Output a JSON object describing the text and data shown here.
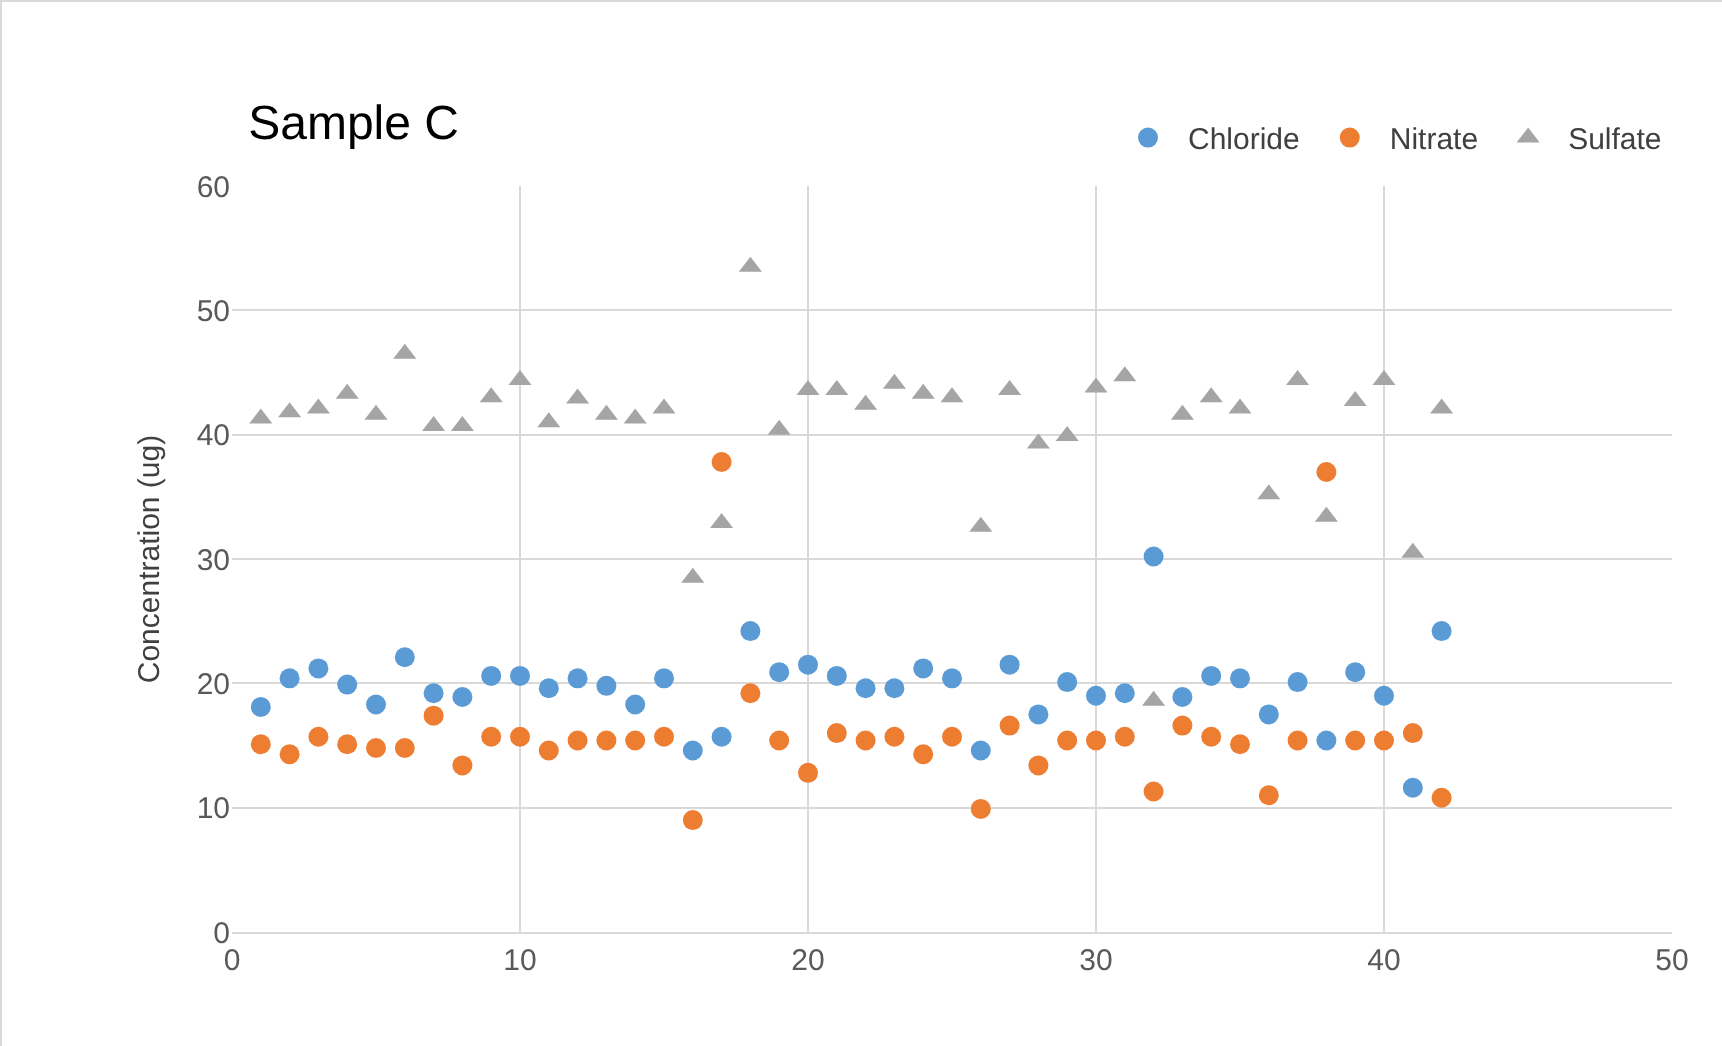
{
  "chart_data": {
    "type": "scatter",
    "title": "Sample C",
    "ylabel": "Concentration (ug)",
    "x": [
      1,
      2,
      3,
      4,
      5,
      6,
      7,
      8,
      9,
      10,
      11,
      12,
      13,
      14,
      15,
      16,
      17,
      18,
      19,
      20,
      21,
      22,
      23,
      24,
      25,
      26,
      27,
      28,
      29,
      30,
      31,
      32,
      33,
      34,
      35,
      36,
      37,
      38,
      39,
      40,
      41,
      42
    ],
    "series": [
      {
        "name": "Chloride",
        "color": "#5b9bd5",
        "marker": "circle",
        "values": [
          18.1,
          20.4,
          21.2,
          19.9,
          18.3,
          22.1,
          19.2,
          18.9,
          20.6,
          20.6,
          19.6,
          20.4,
          19.8,
          18.3,
          20.4,
          14.6,
          15.7,
          24.2,
          20.9,
          21.5,
          20.6,
          19.6,
          19.6,
          21.2,
          20.4,
          14.6,
          21.5,
          17.5,
          20.1,
          19.0,
          19.2,
          30.2,
          18.9,
          20.6,
          20.4,
          17.5,
          20.1,
          15.4,
          20.9,
          19.0,
          11.6,
          24.2
        ]
      },
      {
        "name": "Nitrate",
        "color": "#ed7d31",
        "marker": "circle",
        "values": [
          15.1,
          14.3,
          15.7,
          15.1,
          14.8,
          14.8,
          17.4,
          13.4,
          15.7,
          15.7,
          14.6,
          15.4,
          15.4,
          15.4,
          15.7,
          9.0,
          37.8,
          19.2,
          15.4,
          12.8,
          16.0,
          15.4,
          15.7,
          14.3,
          15.7,
          9.9,
          16.6,
          13.4,
          15.4,
          15.4,
          15.7,
          11.3,
          16.6,
          15.7,
          15.1,
          11.0,
          15.4,
          37.0,
          15.4,
          15.4,
          16.0,
          10.8
        ]
      },
      {
        "name": "Sulfate",
        "color": "#a5a5a5",
        "marker": "triangle",
        "values": [
          41.3,
          41.8,
          42.1,
          43.3,
          41.6,
          46.5,
          40.7,
          40.7,
          43.0,
          44.4,
          41.0,
          42.9,
          41.6,
          41.3,
          42.1,
          28.5,
          32.9,
          53.5,
          40.4,
          43.6,
          43.6,
          42.4,
          44.1,
          43.3,
          43.0,
          32.6,
          43.6,
          39.3,
          39.9,
          43.8,
          44.7,
          18.6,
          41.6,
          43.0,
          42.1,
          35.2,
          44.4,
          33.4,
          42.7,
          44.4,
          30.5,
          42.1
        ]
      }
    ],
    "xlim": [
      0,
      50
    ],
    "xticks": [
      0,
      10,
      20,
      30,
      40,
      50
    ],
    "ylim": [
      0,
      60
    ],
    "yticks": [
      0,
      10,
      20,
      30,
      40,
      50,
      60
    ],
    "grid": true,
    "legend": "top right"
  }
}
